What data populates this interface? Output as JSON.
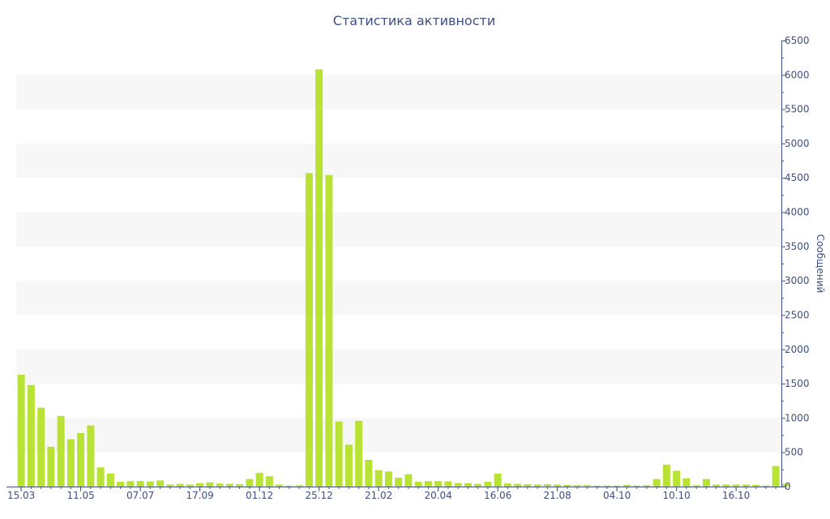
{
  "chart_data": {
    "type": "bar",
    "title": "Статистика активности",
    "xlabel": "",
    "ylabel": "Сообщений",
    "ylim": [
      0,
      6500
    ],
    "y_ticks": [
      0,
      500,
      1000,
      1500,
      2000,
      2500,
      3000,
      3500,
      4000,
      4500,
      5000,
      5500,
      6000,
      6500
    ],
    "y_axis_side": "right",
    "grid": "alternating horizontal bands",
    "legend": "none",
    "x_tick_labels": [
      {
        "label": "15.03",
        "index": 0
      },
      {
        "label": "11.05",
        "index": 6
      },
      {
        "label": "07.07",
        "index": 12
      },
      {
        "label": "17.09",
        "index": 18
      },
      {
        "label": "01.12",
        "index": 24
      },
      {
        "label": "25.12",
        "index": 30
      },
      {
        "label": "21.02",
        "index": 36
      },
      {
        "label": "20.04",
        "index": 42
      },
      {
        "label": "16.06",
        "index": 48
      },
      {
        "label": "21.08",
        "index": 54
      },
      {
        "label": "04.10",
        "index": 60
      },
      {
        "label": "10.10",
        "index": 66
      },
      {
        "label": "16.10",
        "index": 72
      }
    ],
    "values": [
      1630,
      1480,
      1150,
      580,
      1030,
      690,
      780,
      890,
      280,
      190,
      70,
      80,
      80,
      75,
      90,
      30,
      40,
      30,
      50,
      60,
      45,
      40,
      35,
      110,
      200,
      150,
      30,
      15,
      20,
      4570,
      6080,
      4540,
      950,
      610,
      960,
      390,
      240,
      220,
      130,
      180,
      70,
      80,
      80,
      75,
      50,
      50,
      40,
      70,
      190,
      45,
      40,
      35,
      30,
      35,
      30,
      25,
      20,
      20,
      15,
      15,
      15,
      25,
      15,
      20,
      110,
      320,
      230,
      120,
      20,
      110,
      30,
      30,
      30,
      30,
      25,
      15,
      300,
      40
    ],
    "colors": {
      "bar": "#b8e234",
      "band": "#f7f7f7",
      "axis": "#3e4f80",
      "text": "#3e4f80"
    }
  }
}
